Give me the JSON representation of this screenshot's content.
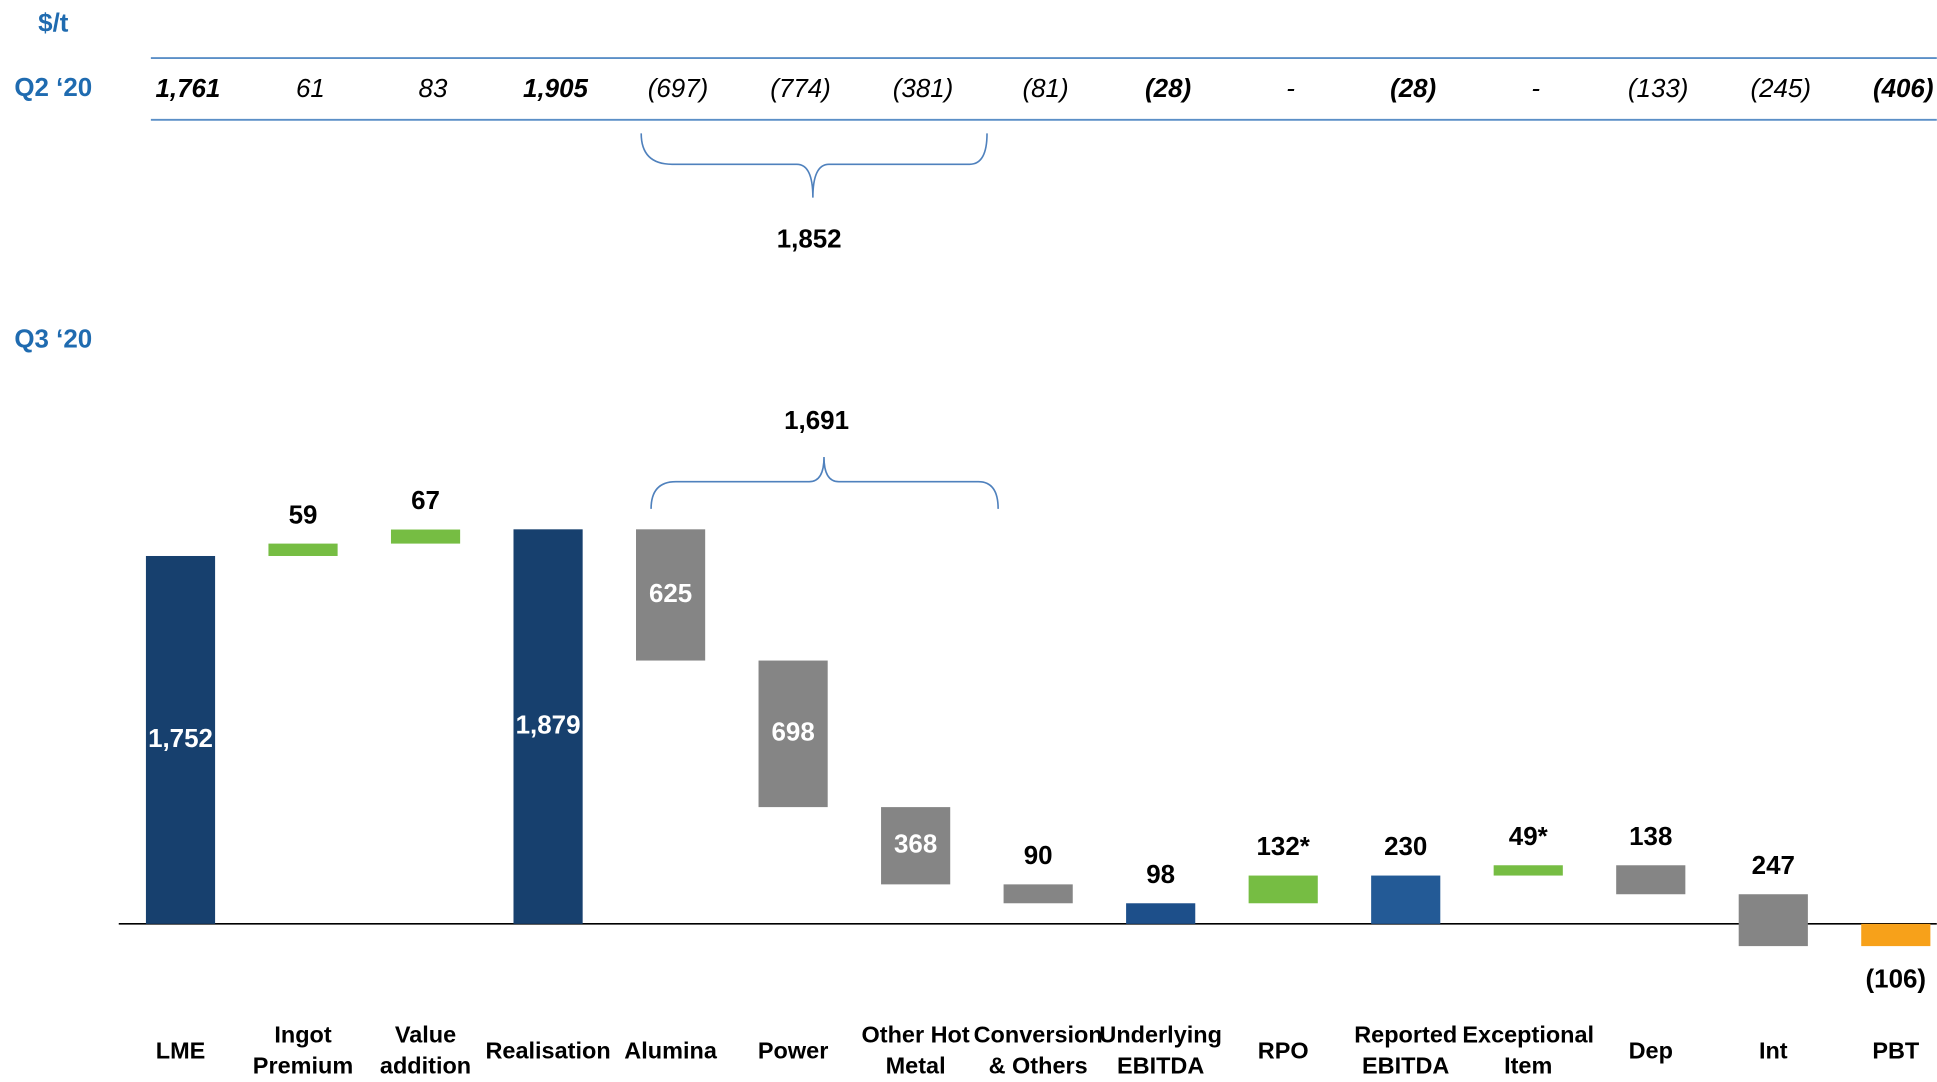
{
  "chart_data": {
    "type": "waterfall",
    "unit_label": "$/t",
    "q3_label": "Q3 ‘20",
    "categories": [
      "LME",
      "Ingot Premium",
      "Value addition",
      "Realisation",
      "Alumina",
      "Power",
      "Other Hot Metal",
      "Conversion & Others",
      "Underlying EBITDA",
      "RPO",
      "Reported EBITDA",
      "Exceptional Item",
      "Dep",
      "Int",
      "PBT"
    ],
    "kinds": [
      "total",
      "increase",
      "increase",
      "total",
      "decrease",
      "decrease",
      "decrease",
      "decrease",
      "total",
      "increase",
      "total",
      "increase",
      "decrease",
      "decrease",
      "total"
    ],
    "values": [
      1752,
      59,
      67,
      1879,
      625,
      698,
      368,
      90,
      98,
      132,
      230,
      49,
      138,
      247,
      -106
    ],
    "value_labels": [
      "1,752",
      "59",
      "67",
      "1,879",
      "625",
      "698",
      "368",
      "90",
      "98",
      "132*",
      "230",
      "49*",
      "138",
      "247",
      "(106)"
    ],
    "colors": [
      "#17406e",
      "#76bd43",
      "#76bd43",
      "#17406e",
      "#858585",
      "#858585",
      "#858585",
      "#858585",
      "#1d4f8a",
      "#76bd43",
      "#235a96",
      "#76bd43",
      "#858585",
      "#858585",
      "#f7a11a"
    ],
    "ylim": [
      -400,
      3300
    ],
    "q2_row": {
      "label": "Q2 ‘20",
      "values": [
        "1,761",
        "61",
        "83",
        "1,905",
        "(697)",
        "(774)",
        "(381)",
        "(81)",
        "(28)",
        "-",
        "(28)",
        "-",
        "(133)",
        "(245)",
        "(406)"
      ]
    },
    "q2_bracket_label": "1,852",
    "q3_bracket_label": "1,691"
  }
}
